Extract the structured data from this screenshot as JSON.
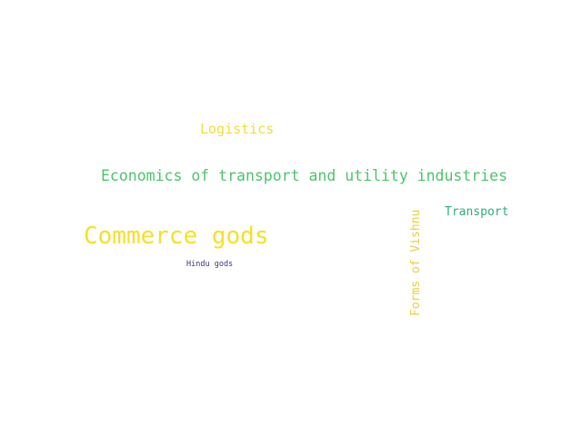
{
  "words": [
    {
      "text": "Logistics",
      "color": "#f2dd3c",
      "orientation": "horizontal"
    },
    {
      "text": "Economics of transport and utility industries",
      "color": "#4ec46a",
      "orientation": "horizontal"
    },
    {
      "text": "Transport",
      "color": "#2fae7c",
      "orientation": "horizontal"
    },
    {
      "text": "Commerce gods",
      "color": "#f5e02a",
      "orientation": "horizontal"
    },
    {
      "text": "Hindu gods",
      "color": "#46307e",
      "orientation": "horizontal"
    },
    {
      "text": "Forms of Vishnu",
      "color": "#ead03a",
      "orientation": "vertical"
    }
  ]
}
